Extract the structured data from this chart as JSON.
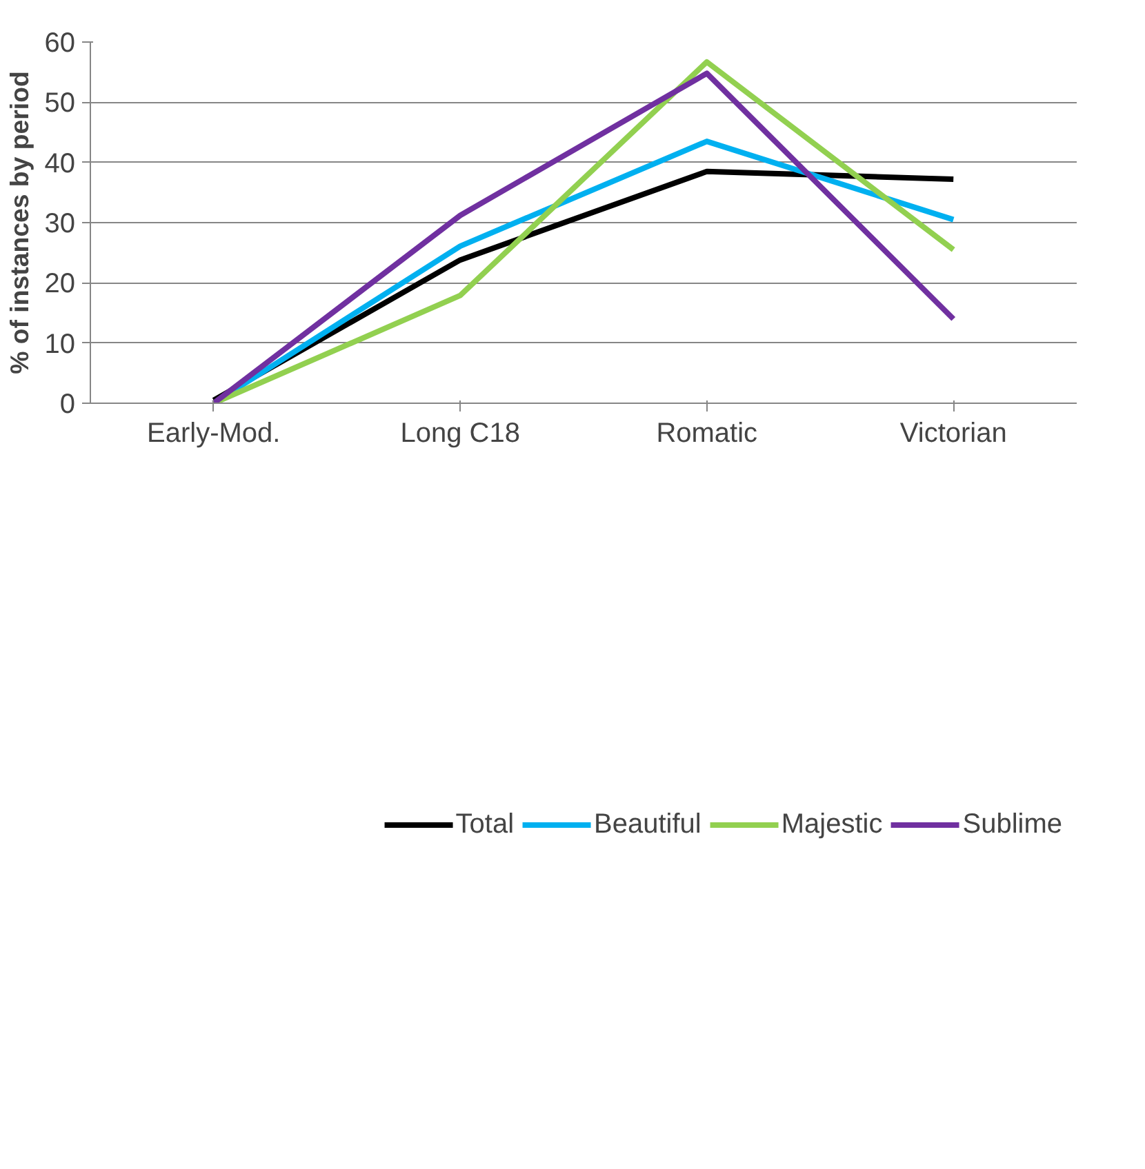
{
  "chart_data": {
    "type": "line",
    "ylabel": "% of instances by period",
    "categories": [
      "Early-Mod.",
      "Long C18",
      "Romatic",
      "Victorian"
    ],
    "series": [
      {
        "name": "Total",
        "color": "#000000",
        "values": [
          0.5,
          23.8,
          38.5,
          37.2
        ]
      },
      {
        "name": "Beautiful",
        "color": "#00b0f0",
        "values": [
          0,
          26.1,
          43.5,
          30.5
        ]
      },
      {
        "name": "Majestic",
        "color": "#92d050",
        "values": [
          0,
          17.9,
          56.7,
          25.5
        ]
      },
      {
        "name": "Sublime",
        "color": "#7030a0",
        "values": [
          0,
          31.2,
          54.8,
          14.0
        ]
      }
    ],
    "ylim": [
      0,
      60
    ],
    "yticks": [
      0,
      10,
      20,
      30,
      40,
      50,
      60
    ],
    "grid": "y",
    "legend": "bottom",
    "marker": "none",
    "line_style": "solid"
  }
}
